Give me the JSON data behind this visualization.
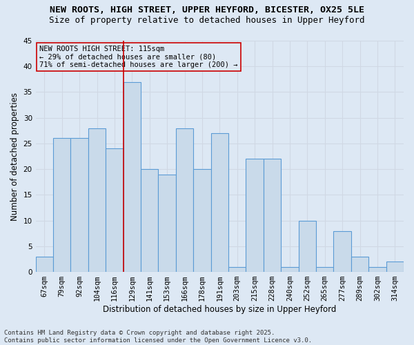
{
  "title_line1": "NEW ROOTS, HIGH STREET, UPPER HEYFORD, BICESTER, OX25 5LE",
  "title_line2": "Size of property relative to detached houses in Upper Heyford",
  "xlabel": "Distribution of detached houses by size in Upper Heyford",
  "ylabel": "Number of detached properties",
  "categories": [
    "67sqm",
    "79sqm",
    "92sqm",
    "104sqm",
    "116sqm",
    "129sqm",
    "141sqm",
    "153sqm",
    "166sqm",
    "178sqm",
    "191sqm",
    "203sqm",
    "215sqm",
    "228sqm",
    "240sqm",
    "252sqm",
    "265sqm",
    "277sqm",
    "289sqm",
    "302sqm",
    "314sqm"
  ],
  "values": [
    3,
    26,
    26,
    28,
    24,
    37,
    20,
    19,
    28,
    20,
    27,
    1,
    22,
    22,
    1,
    10,
    1,
    8,
    3,
    1,
    2
  ],
  "ylim": [
    0,
    45
  ],
  "yticks": [
    0,
    5,
    10,
    15,
    20,
    25,
    30,
    35,
    40,
    45
  ],
  "bar_color": "#c9daea",
  "bar_edge_color": "#5b9bd5",
  "grid_color": "#d0d8e4",
  "bg_color": "#dde8f4",
  "annotation_text": "NEW ROOTS HIGH STREET: 115sqm\n← 29% of detached houses are smaller (80)\n71% of semi-detached houses are larger (200) →",
  "vline_x_index": 4,
  "vline_color": "#cc0000",
  "annotation_box_color": "#cc0000",
  "footer_line1": "Contains HM Land Registry data © Crown copyright and database right 2025.",
  "footer_line2": "Contains public sector information licensed under the Open Government Licence v3.0.",
  "title_fontsize": 9.5,
  "title2_fontsize": 9,
  "axis_label_fontsize": 8.5,
  "tick_fontsize": 7.5,
  "annotation_fontsize": 7.5,
  "footer_fontsize": 6.5
}
